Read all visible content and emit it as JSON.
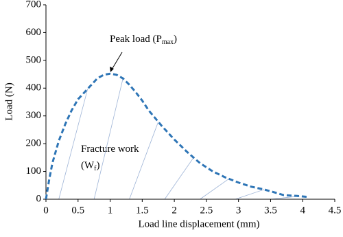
{
  "chart_data": {
    "type": "line",
    "x": [
      0,
      0.05,
      0.1,
      0.2,
      0.3,
      0.4,
      0.5,
      0.6,
      0.7,
      0.8,
      0.9,
      1.0,
      1.1,
      1.2,
      1.3,
      1.4,
      1.5,
      1.6,
      1.8,
      2.0,
      2.2,
      2.4,
      2.6,
      2.8,
      3.0,
      3.2,
      3.4,
      3.6,
      3.7,
      3.9,
      4.1
    ],
    "values": [
      0,
      70,
      130,
      210,
      270,
      320,
      360,
      385,
      410,
      435,
      448,
      452,
      448,
      435,
      412,
      385,
      355,
      320,
      265,
      215,
      170,
      130,
      100,
      78,
      60,
      45,
      35,
      22,
      15,
      12,
      8
    ],
    "color": "#2e75b6",
    "x_label": "Load line displacement (mm)",
    "y_label": "Load (N)",
    "xlim": [
      0,
      4.5
    ],
    "xticks": [
      0,
      0.5,
      1,
      1.5,
      2,
      2.5,
      3,
      3.5,
      4,
      4.5
    ],
    "ylim": [
      0,
      700
    ],
    "yticks": [
      0,
      100,
      200,
      300,
      400,
      500,
      600,
      700
    ],
    "grid": false,
    "annotations": [
      {
        "parts": [
          "Peak load (P",
          "max",
          ")"
        ]
      },
      {
        "parts": [
          "Fracture work"
        ]
      },
      {
        "parts": [
          "(W",
          "f",
          ")"
        ]
      }
    ]
  }
}
